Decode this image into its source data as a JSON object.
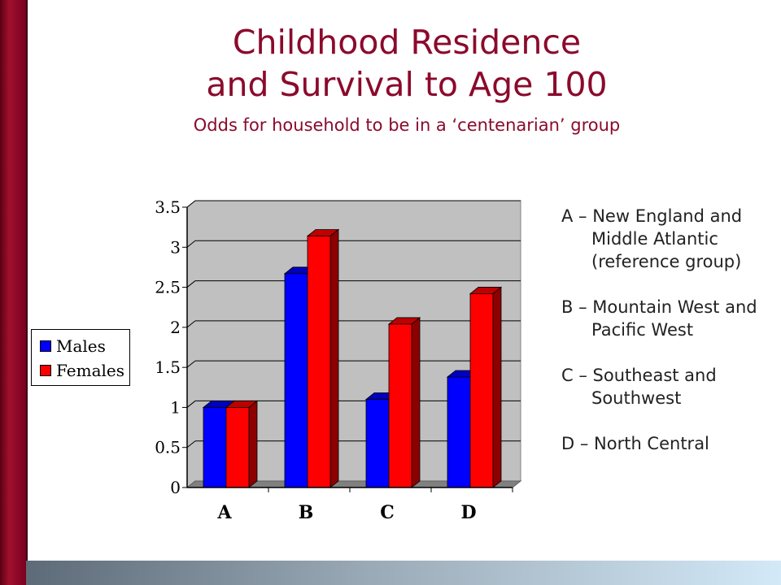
{
  "title_line1": "Childhood Residence",
  "title_line2": "and Survival to Age 100",
  "subtitle": "Odds for household to be in a ‘centenarian’ group",
  "notes": [
    "A – New England and Middle Atlantic (reference group)",
    "B – Mountain West and Pacific West",
    "C – Southeast and Southwest",
    "D – North Central"
  ],
  "colors": {
    "accent": "#8b0a2c",
    "males": "#0000ff",
    "females": "#ff0000",
    "plot_bg": "#c0c0c0"
  },
  "chart_data": {
    "type": "bar",
    "categories": [
      "A",
      "B",
      "C",
      "D"
    ],
    "series": [
      {
        "name": "Males",
        "values": [
          1.0,
          2.67,
          1.1,
          1.38
        ]
      },
      {
        "name": "Females",
        "values": [
          1.0,
          3.14,
          2.04,
          2.42
        ]
      }
    ],
    "ylim": [
      0,
      3.5
    ],
    "yticks": [
      "0",
      "0.5",
      "1",
      "1.5",
      "2",
      "2.5",
      "3",
      "3.5"
    ],
    "grid": true,
    "legend_position": "left"
  }
}
